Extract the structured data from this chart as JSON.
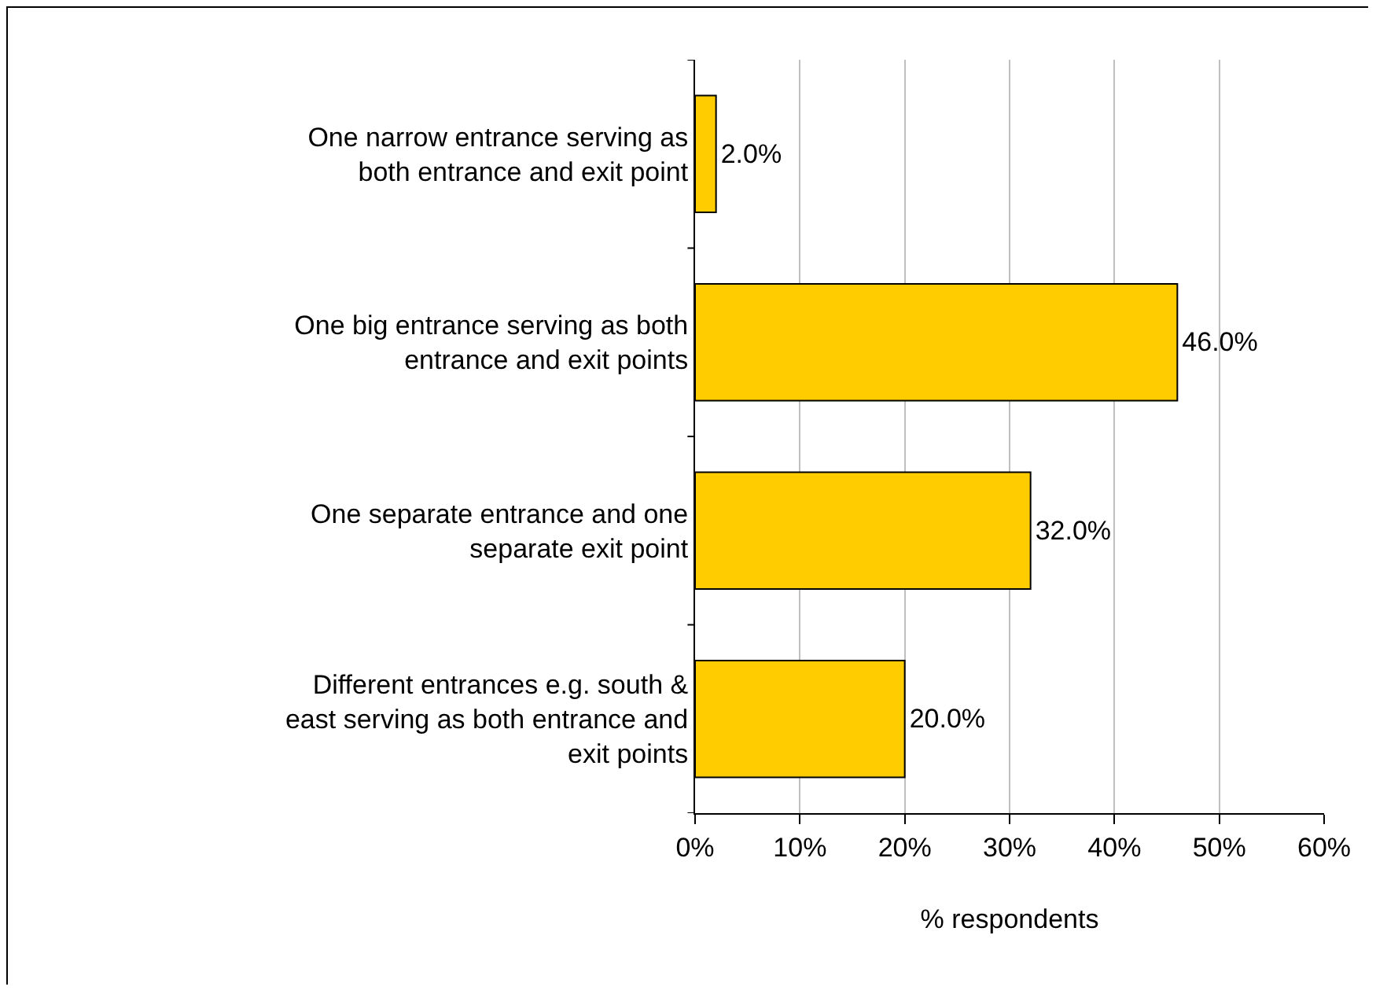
{
  "chart_data": {
    "type": "bar",
    "orientation": "horizontal",
    "xlabel": "% respondents",
    "categories": [
      "One narrow entrance serving as both entrance and exit point",
      "One big entrance serving as both entrance and exit points",
      "One separate entrance and one separate exit point",
      "Different entrances e.g. south & east serving as both entrance and exit points"
    ],
    "values": [
      2.0,
      46.0,
      32.0,
      20.0
    ],
    "value_labels": [
      "2.0%",
      "46.0%",
      "32.0%",
      "20.0%"
    ],
    "color": "#ffcc00",
    "xlim": [
      0,
      60
    ],
    "xticks": [
      {
        "value": 0,
        "label": "0%"
      },
      {
        "value": 10,
        "label": "10%"
      },
      {
        "value": 20,
        "label": "20%"
      },
      {
        "value": 30,
        "label": "30%"
      },
      {
        "value": 40,
        "label": "40%"
      },
      {
        "value": 50,
        "label": "50%"
      },
      {
        "value": 60,
        "label": "60%"
      }
    ],
    "grid": "x",
    "legend": false
  }
}
